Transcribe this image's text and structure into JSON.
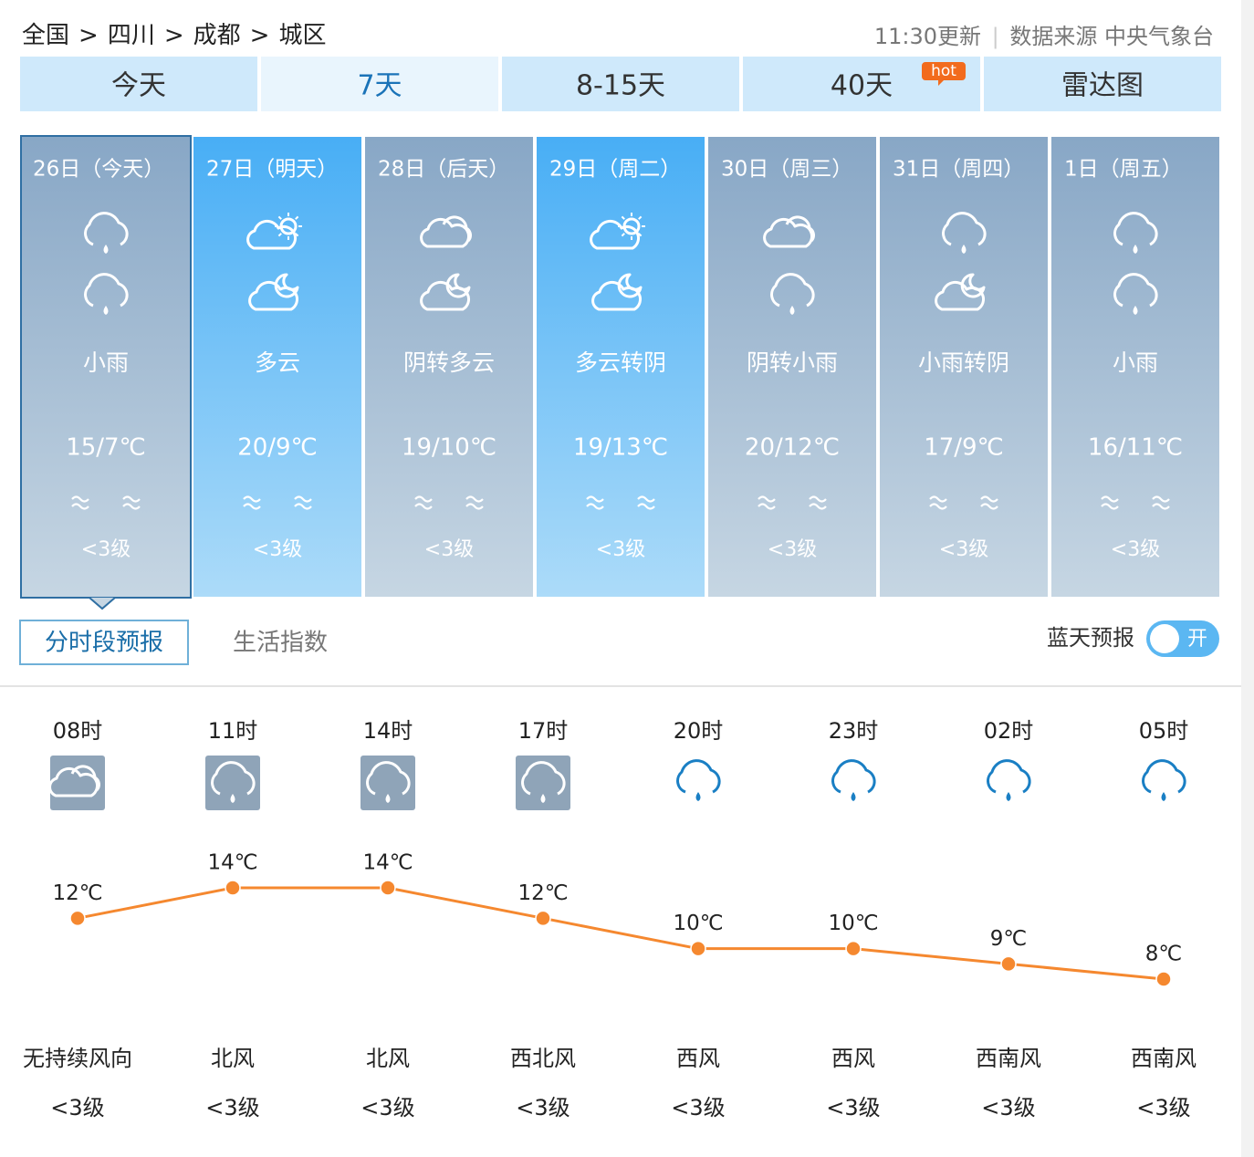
{
  "breadcrumb": {
    "items": [
      "全国",
      "四川",
      "成都",
      "城区"
    ],
    "separator": ">"
  },
  "update": {
    "time": "11:30更新",
    "source_label": "数据来源",
    "source": "中央气象台"
  },
  "tabs": {
    "items": [
      "今天",
      "7天",
      "8-15天",
      "40天",
      "雷达图"
    ],
    "hot_badge": "hot"
  },
  "days": [
    {
      "date": "26日（今天）",
      "icon_day": "rain",
      "icon_night": "rain",
      "weather": "小雨",
      "temp": "15/7℃",
      "wind": "<3级",
      "style": "gray"
    },
    {
      "date": "27日（明天）",
      "icon_day": "sun-cloud",
      "icon_night": "moon-cloud",
      "weather": "多云",
      "temp": "20/9℃",
      "wind": "<3级",
      "style": "blue"
    },
    {
      "date": "28日（后天）",
      "icon_day": "overcast",
      "icon_night": "moon-cloud",
      "weather": "阴转多云",
      "temp": "19/10℃",
      "wind": "<3级",
      "style": "gray"
    },
    {
      "date": "29日（周二）",
      "icon_day": "sun-cloud",
      "icon_night": "moon-cloud",
      "weather": "多云转阴",
      "temp": "19/13℃",
      "wind": "<3级",
      "style": "blue"
    },
    {
      "date": "30日（周三）",
      "icon_day": "overcast",
      "icon_night": "rain",
      "weather": "阴转小雨",
      "temp": "20/12℃",
      "wind": "<3级",
      "style": "gray"
    },
    {
      "date": "31日（周四）",
      "icon_day": "rain",
      "icon_night": "moon-cloud",
      "weather": "小雨转阴",
      "temp": "17/9℃",
      "wind": "<3级",
      "style": "gray"
    },
    {
      "date": "1日（周五）",
      "icon_day": "rain",
      "icon_night": "rain",
      "weather": "小雨",
      "temp": "16/11℃",
      "wind": "<3级",
      "style": "gray"
    }
  ],
  "subtabs": [
    "分时段预报",
    "生活指数"
  ],
  "bluesky": {
    "label": "蓝天预报",
    "toggle": "开"
  },
  "hourly": {
    "times": [
      "08时",
      "11时",
      "14时",
      "17时",
      "20时",
      "23时",
      "02时",
      "05时"
    ],
    "icons": [
      "overcast",
      "rain",
      "rain",
      "rain",
      "rain",
      "rain",
      "rain",
      "rain"
    ],
    "temps": [
      12,
      14,
      14,
      12,
      10,
      10,
      9,
      8
    ],
    "temp_labels": [
      "12℃",
      "14℃",
      "14℃",
      "12℃",
      "10℃",
      "10℃",
      "9℃",
      "8℃"
    ],
    "color": "#f5882f",
    "wind_dirs": [
      "无持续风向",
      "北风",
      "北风",
      "西北风",
      "西风",
      "西风",
      "西南风",
      "西南风"
    ],
    "wind_levels": [
      "<3级",
      "<3级",
      "<3级",
      "<3级",
      "<3级",
      "<3级",
      "<3级",
      "<3级"
    ]
  }
}
